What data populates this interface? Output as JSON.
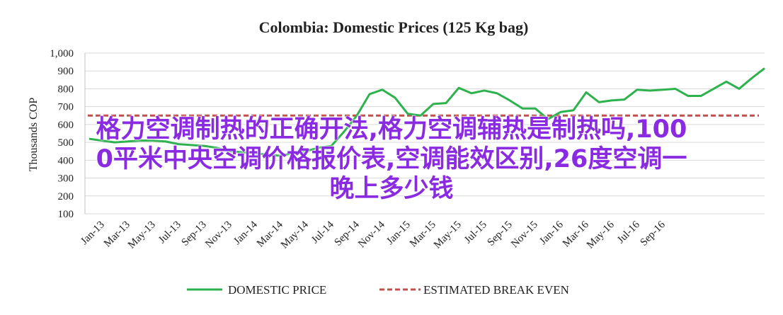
{
  "chart_data": {
    "type": "line",
    "title": "Colombia:  Domestic Prices (125 Kg bag)",
    "ylabel": "Thousands COP",
    "ylim": [
      100,
      1000
    ],
    "yticks": [
      "1,000",
      "900",
      "800",
      "700",
      "600",
      "500",
      "400",
      "300",
      "200",
      "100"
    ],
    "xticks": [
      "Jan-13",
      "Mar-13",
      "May-13",
      "Jul-13",
      "Sep-13",
      "Nov-13",
      "Jan-14",
      "Mar-14",
      "May-14",
      "Jul-14",
      "Sep-14",
      "Nov-14",
      "Jan-15",
      "Mar-15",
      "May-15",
      "Jul-15",
      "Sep-15",
      "Nov-15",
      "Jan-16",
      "Mar-16",
      "May-16",
      "Jul-16",
      "Sep-16"
    ],
    "grid": true,
    "legend_position": "bottom",
    "series": [
      {
        "name": "DOMESTIC PRICE",
        "color": "#2eb24e",
        "style": "solid",
        "values": [
          520,
          510,
          500,
          505,
          510,
          510,
          505,
          490,
          485,
          480,
          470,
          450,
          445,
          440,
          430,
          425,
          440,
          450,
          470,
          480,
          560,
          650,
          770,
          795,
          750,
          660,
          650,
          715,
          720,
          805,
          775,
          790,
          775,
          735,
          690,
          690,
          630,
          670,
          680,
          780,
          725,
          735,
          740,
          795,
          790,
          795,
          800,
          760,
          760,
          800,
          840,
          800,
          860,
          915
        ]
      },
      {
        "name": "ESTIMATED BREAK EVEN",
        "color": "#c0504d",
        "style": "dashed",
        "constant": 650
      }
    ]
  },
  "overlay_text": {
    "line1": "格力空调制热的正确开法,格力空调辅热是制热吗,100",
    "line2": "0平米中央空调价格报价表,空调能效区别,26度空调一",
    "line3": "晚上多少钱"
  }
}
